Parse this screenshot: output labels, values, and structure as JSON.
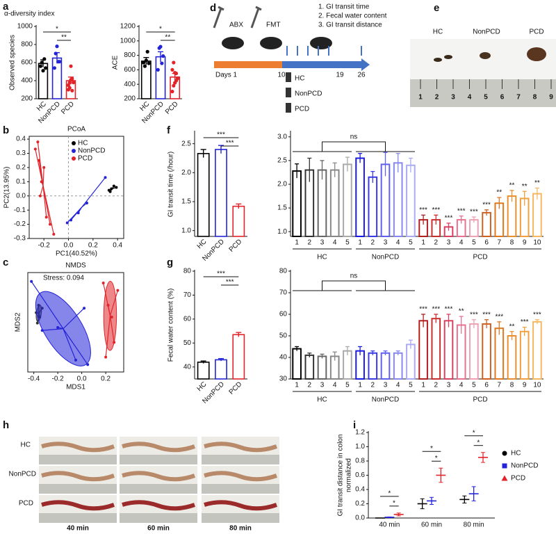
{
  "chart_data": [
    {
      "type": "bar",
      "title": "α-diversity index",
      "ylabel": "Observed species",
      "categories": [
        "HC",
        "NonPCD",
        "PCD"
      ],
      "values": [
        590,
        650,
        400
      ],
      "errors": [
        40,
        60,
        40
      ],
      "colors": [
        "#000000",
        "#2323d8",
        "#e0242a"
      ],
      "points": [
        [
          560,
          600,
          510,
          640,
          540
        ],
        [
          540,
          700,
          780,
          610,
          610
        ],
        [
          300,
          320,
          560,
          420,
          380,
          350,
          380,
          410,
          290
        ]
      ],
      "ylim": [
        200,
        1000
      ],
      "yticks": [
        200,
        400,
        600,
        800,
        1000
      ],
      "annotations": [
        {
          "label": "*",
          "categories": [
            "HC",
            "PCD"
          ]
        },
        {
          "label": "**",
          "categories": [
            "NonPCD",
            "PCD"
          ]
        }
      ]
    },
    {
      "type": "bar",
      "ylabel": "ACE",
      "categories": [
        "HC",
        "NonPCD",
        "PCD"
      ],
      "values": [
        720,
        780,
        500
      ],
      "errors": [
        50,
        70,
        50
      ],
      "colors": [
        "#000000",
        "#2323d8",
        "#e0242a"
      ],
      "points": [
        [
          700,
          650,
          730,
          850,
          690
        ],
        [
          600,
          900,
          920,
          690,
          790
        ],
        [
          300,
          380,
          420,
          550,
          480,
          600,
          700,
          560,
          450
        ]
      ],
      "ylim": [
        200,
        1200
      ],
      "yticks": [
        200,
        400,
        600,
        800,
        1000,
        1200
      ],
      "annotations": [
        {
          "label": "*",
          "categories": [
            "HC",
            "PCD"
          ]
        },
        {
          "label": "**",
          "categories": [
            "NonPCD",
            "PCD"
          ]
        }
      ]
    },
    {
      "type": "scatter",
      "title": "PCoA",
      "xlabel": "PC1(40.52%)",
      "ylabel": "PC2(13.95%)",
      "xlim": [
        -0.32,
        0.45
      ],
      "ylim": [
        -0.3,
        0.42
      ],
      "xticks": [
        -0.2,
        {
          "value": 0,
          "label": "0.0"
        },
        0.2,
        0.4
      ],
      "yticks": [
        -0.3,
        -0.2,
        -0.1,
        {
          "value": 0,
          "label": "0.0"
        },
        0.1,
        0.2,
        0.3,
        0.4
      ],
      "legend": "upper right",
      "ellipse": false,
      "series": [
        {
          "name": "HC",
          "color": "#000000",
          "x": [
            0.33,
            0.35,
            0.37,
            0.39,
            0.34
          ],
          "y": [
            0.04,
            0.05,
            0.07,
            0.06,
            0.03
          ]
        },
        {
          "name": "NonPCD",
          "color": "#2323d8",
          "x": [
            -0.01,
            0.02,
            0.08,
            0.15,
            0.3
          ],
          "y": [
            -0.19,
            -0.17,
            -0.12,
            -0.05,
            0.13
          ]
        },
        {
          "name": "PCD",
          "color": "#e0242a",
          "x": [
            -0.27,
            -0.25,
            -0.2,
            -0.22,
            -0.12,
            -0.18,
            -0.23,
            -0.24,
            -0.15
          ],
          "y": [
            0.33,
            0.38,
            0.2,
            0.1,
            -0.27,
            -0.15,
            0.0,
            0.25,
            -0.2
          ]
        }
      ]
    },
    {
      "type": "scatter",
      "title": "NMDS",
      "xlabel": "MDS1",
      "ylabel": "MDS2",
      "annotation": "Stress: 0.094",
      "xlim": [
        -0.45,
        0.35
      ],
      "ylim": [
        -0.35,
        0.32
      ],
      "xticks": [
        -0.4,
        -0.2,
        {
          "value": 0,
          "label": "0.0"
        },
        0.2
      ],
      "yticks": [],
      "ellipse": true,
      "series": [
        {
          "name": "HC",
          "color": "#333333",
          "x": [
            -0.38,
            -0.36,
            -0.33,
            -0.35,
            -0.37
          ],
          "y": [
            0.05,
            0.1,
            0.08,
            0.02,
            -0.02
          ]
        },
        {
          "name": "NonPCD",
          "color": "#2323d8",
          "x": [
            -0.42,
            -0.33,
            -0.2,
            -0.05,
            0.05,
            0.02
          ],
          "y": [
            0.26,
            -0.07,
            -0.05,
            -0.27,
            -0.3,
            0.08
          ]
        },
        {
          "name": "PCD",
          "color": "#e0242a",
          "x": [
            0.18,
            0.2,
            0.22,
            0.25,
            0.3,
            0.27
          ],
          "y": [
            0.25,
            -0.25,
            0.1,
            0.02,
            0.2,
            -0.15
          ]
        }
      ]
    },
    {
      "type": "bar",
      "ylabel": "GI transit time (/hour)",
      "categories": [
        "HC",
        "NonPCD",
        "PCD"
      ],
      "values": [
        2.33,
        2.4,
        1.42
      ],
      "errors": [
        0.07,
        0.07,
        0.04
      ],
      "colors": [
        "#000000",
        "#2323d8",
        "#e0242a"
      ],
      "ylim": [
        0.9,
        2.7
      ],
      "yticks": [
        {
          "value": 1,
          "label": "1.0"
        },
        1.5,
        {
          "value": 2,
          "label": "2.0"
        },
        2.5
      ],
      "annotations": [
        {
          "label": "***",
          "categories": [
            "HC",
            "PCD"
          ]
        },
        {
          "label": "***",
          "categories": [
            "NonPCD",
            "PCD"
          ]
        }
      ]
    },
    {
      "type": "grouped-bar",
      "ylim": [
        0.9,
        3.1
      ],
      "yticks": [
        {
          "value": 1,
          "label": "1.0"
        },
        1.5,
        {
          "value": 2,
          "label": "2.0"
        },
        2.5,
        {
          "value": 3,
          "label": "3.0"
        }
      ],
      "groups": [
        {
          "name": "HC",
          "categories": [
            "1",
            "2",
            "3",
            "4",
            "5"
          ],
          "values": [
            2.28,
            2.3,
            2.3,
            2.3,
            2.42
          ],
          "errors": [
            0.15,
            0.25,
            0.2,
            0.15,
            0.15
          ],
          "colors": [
            "#000000",
            "#333333",
            "#666666",
            "#888888",
            "#aaaaaa"
          ]
        },
        {
          "name": "NonPCD",
          "categories": [
            "1",
            "2",
            "3",
            "4",
            "5"
          ],
          "values": [
            2.55,
            2.15,
            2.42,
            2.45,
            2.4
          ],
          "errors": [
            0.1,
            0.12,
            0.25,
            0.2,
            0.15
          ],
          "colors": [
            "#1a1ae6",
            "#3a3ae6",
            "#6060f0",
            "#8888f0",
            "#aaaaf5"
          ]
        },
        {
          "name": "PCD",
          "categories": [
            "1",
            "2",
            "3",
            "4",
            "5",
            "6",
            "7",
            "8",
            "9",
            "10"
          ],
          "values": [
            1.25,
            1.25,
            1.1,
            1.25,
            1.25,
            1.4,
            1.6,
            1.75,
            1.7,
            1.8
          ],
          "errors": [
            0.1,
            0.1,
            0.08,
            0.08,
            0.06,
            0.06,
            0.12,
            0.12,
            0.15,
            0.12
          ],
          "colors": [
            "#b02020",
            "#c83030",
            "#d84060",
            "#e87090",
            "#f0a0b0",
            "#d06020",
            "#e07820",
            "#e89030",
            "#f0a040",
            "#f5b860"
          ],
          "stars": [
            "***",
            "***",
            "***",
            "***",
            "***",
            "***",
            "**",
            "**",
            "**",
            "**"
          ]
        }
      ],
      "annotations": [
        {
          "label": "ns",
          "groups": [
            "HC",
            "NonPCD"
          ]
        }
      ]
    },
    {
      "type": "bar",
      "ylabel": "Fecal water content (%)",
      "categories": [
        "HC",
        "NonPCD",
        "PCD"
      ],
      "values": [
        42,
        43,
        53.5
      ],
      "errors": [
        0.5,
        0.5,
        0.9
      ],
      "colors": [
        "#000000",
        "#2323d8",
        "#e0242a"
      ],
      "ylim": [
        35,
        80
      ],
      "yticks": [
        40,
        50,
        60,
        70,
        80
      ],
      "annotations": [
        {
          "label": "***",
          "categories": [
            "HC",
            "PCD"
          ]
        },
        {
          "label": "***",
          "categories": [
            "NonPCD",
            "PCD"
          ]
        }
      ]
    },
    {
      "type": "grouped-bar",
      "ylim": [
        30,
        80
      ],
      "yticks": [
        30,
        40,
        50,
        60,
        70,
        80
      ],
      "groups": [
        {
          "name": "HC",
          "categories": [
            "1",
            "2",
            "3",
            "4",
            "5"
          ],
          "values": [
            44,
            41,
            40.5,
            40.5,
            43
          ],
          "errors": [
            1,
            1,
            1,
            2,
            2
          ],
          "colors": [
            "#000000",
            "#333333",
            "#666666",
            "#888888",
            "#aaaaaa"
          ]
        },
        {
          "name": "NonPCD",
          "categories": [
            "1",
            "2",
            "3",
            "4",
            "5"
          ],
          "values": [
            43,
            42,
            42,
            42,
            46
          ],
          "errors": [
            2,
            1,
            1,
            1,
            2
          ],
          "colors": [
            "#1a1ae6",
            "#3a3ae6",
            "#6060f0",
            "#8888f0",
            "#aaaaf5"
          ]
        },
        {
          "name": "PCD",
          "categories": [
            "1",
            "2",
            "3",
            "4",
            "5",
            "6",
            "7",
            "8",
            "9",
            "10"
          ],
          "values": [
            57,
            58,
            57,
            55,
            55.5,
            55.5,
            53.5,
            50,
            52,
            56.5
          ],
          "errors": [
            3,
            2,
            3,
            4,
            2,
            2,
            3,
            2,
            2,
            1
          ],
          "colors": [
            "#b02020",
            "#c83030",
            "#d84060",
            "#e87090",
            "#f0a0b0",
            "#d06020",
            "#e07820",
            "#e89030",
            "#f0a040",
            "#f5b860"
          ],
          "stars": [
            "***",
            "***",
            "***",
            "**",
            "***",
            "***",
            "***",
            "**",
            "***",
            "***"
          ]
        }
      ],
      "annotations": [
        {
          "label": "ns",
          "groups": [
            "HC",
            "NonPCD"
          ]
        }
      ]
    },
    {
      "type": "dot",
      "ylabel": [
        "GI transit distance in colon",
        "normalized"
      ],
      "categories": [
        "40 min",
        "60 min",
        "80 min"
      ],
      "ylim": [
        0,
        1.2
      ],
      "yticks": [
        {
          "value": 0,
          "label": "0.0"
        },
        0.2,
        0.4,
        0.6,
        0.8,
        {
          "value": 1,
          "label": "1.0"
        },
        1.2
      ],
      "legend": "right",
      "series": [
        {
          "name": "HC",
          "color": "#000000",
          "marker": "circle",
          "values": [
            0,
            0.2,
            0.26
          ],
          "errors": [
            0,
            0.07,
            0.05
          ]
        },
        {
          "name": "NonPCD",
          "color": "#2323d8",
          "marker": "square",
          "values": [
            0.01,
            0.24,
            0.34
          ],
          "errors": [
            0.005,
            0.05,
            0.1
          ]
        },
        {
          "name": "PCD",
          "color": "#e0242a",
          "marker": "triangle",
          "values": [
            0.05,
            0.6,
            0.85
          ],
          "errors": [
            0.02,
            0.1,
            0.07
          ]
        }
      ],
      "annotations": [
        {
          "label": "*",
          "category": "40 min",
          "series": [
            "HC",
            "PCD"
          ]
        },
        {
          "label": "*",
          "category": "40 min",
          "series": [
            "NonPCD",
            "PCD"
          ]
        },
        {
          "label": "*",
          "category": "60 min",
          "series": [
            "HC",
            "PCD"
          ]
        },
        {
          "label": "*",
          "category": "60 min",
          "series": [
            "NonPCD",
            "PCD"
          ]
        },
        {
          "label": "*",
          "category": "80 min",
          "series": [
            "HC",
            "PCD"
          ]
        },
        {
          "label": "*",
          "category": "80 min",
          "series": [
            "NonPCD",
            "PCD"
          ]
        }
      ]
    }
  ],
  "panel_letters": [
    "a",
    "b",
    "c",
    "d",
    "e",
    "f",
    "g",
    "h",
    "i"
  ],
  "design": {
    "treatments": [
      "ABX",
      "FMT"
    ],
    "outcomes": [
      "1. GI transit time",
      "2. Fecal water content",
      "3. GI transit distance"
    ],
    "days": [
      "Days 1",
      "10",
      "19",
      "26"
    ],
    "groups": [
      "HC",
      "NonPCD",
      "PCD"
    ]
  },
  "feces_photo": {
    "groups": [
      "HC",
      "NonPCD",
      "PCD"
    ],
    "ruler": [
      "1",
      "2",
      "3",
      "4",
      "5",
      "6",
      "7",
      "8",
      "9"
    ]
  },
  "colon_photos": {
    "groups": [
      "HC",
      "NonPCD",
      "PCD"
    ],
    "times": [
      "40 min",
      "60 min",
      "80 min"
    ]
  }
}
